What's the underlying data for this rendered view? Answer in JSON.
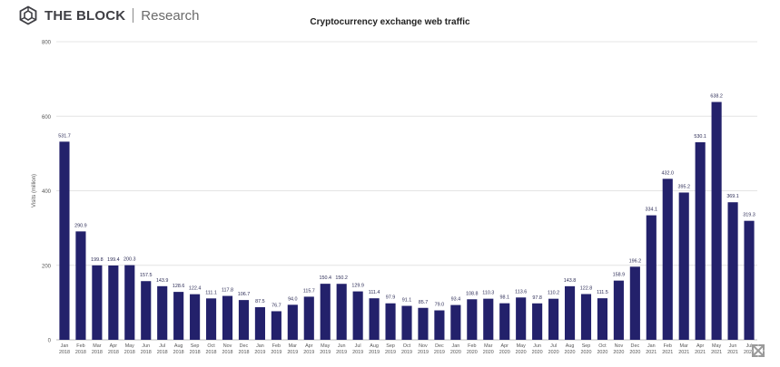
{
  "brand": {
    "name": "THE BLOCK",
    "sub": "Research",
    "icon": "cube-logo-icon"
  },
  "colors": {
    "bar": "#23216b",
    "grid": "#e4e4e4",
    "axis_text": "#555555",
    "label_text": "#2b2b55"
  },
  "chart_data": {
    "type": "bar",
    "title": "Cryptocurrency exchange web traffic",
    "xlabel": "",
    "ylabel": "Visits (million)",
    "ylim": [
      0,
      800
    ],
    "yticks": [
      0,
      200,
      400,
      600,
      800
    ],
    "grid": true,
    "categories": [
      [
        "Jan",
        "2018"
      ],
      [
        "Feb",
        "2018"
      ],
      [
        "Mar",
        "2018"
      ],
      [
        "Apr",
        "2018"
      ],
      [
        "May",
        "2018"
      ],
      [
        "Jun",
        "2018"
      ],
      [
        "Jul",
        "2018"
      ],
      [
        "Aug",
        "2018"
      ],
      [
        "Sep",
        "2018"
      ],
      [
        "Oct",
        "2018"
      ],
      [
        "Nov",
        "2018"
      ],
      [
        "Dec",
        "2018"
      ],
      [
        "Jan",
        "2019"
      ],
      [
        "Feb",
        "2019"
      ],
      [
        "Mar",
        "2019"
      ],
      [
        "Apr",
        "2019"
      ],
      [
        "May",
        "2019"
      ],
      [
        "Jun",
        "2019"
      ],
      [
        "Jul",
        "2019"
      ],
      [
        "Aug",
        "2019"
      ],
      [
        "Sep",
        "2019"
      ],
      [
        "Oct",
        "2019"
      ],
      [
        "Nov",
        "2019"
      ],
      [
        "Dec",
        "2019"
      ],
      [
        "Jan",
        "2020"
      ],
      [
        "Feb",
        "2020"
      ],
      [
        "Mar",
        "2020"
      ],
      [
        "Apr",
        "2020"
      ],
      [
        "May",
        "2020"
      ],
      [
        "Jun",
        "2020"
      ],
      [
        "Jul",
        "2020"
      ],
      [
        "Aug",
        "2020"
      ],
      [
        "Sep",
        "2020"
      ],
      [
        "Oct",
        "2020"
      ],
      [
        "Nov",
        "2020"
      ],
      [
        "Dec",
        "2020"
      ],
      [
        "Jan",
        "2021"
      ],
      [
        "Feb",
        "2021"
      ],
      [
        "Mar",
        "2021"
      ],
      [
        "Apr",
        "2021"
      ],
      [
        "May",
        "2021"
      ],
      [
        "Jun",
        "2021"
      ],
      [
        "Jul",
        "2021"
      ]
    ],
    "values": [
      531.7,
      290.9,
      199.8,
      199.4,
      200.3,
      157.5,
      143.9,
      128.6,
      122.4,
      111.1,
      117.8,
      106.7,
      87.5,
      76.7,
      94.0,
      115.7,
      150.4,
      150.2,
      129.9,
      111.4,
      97.9,
      91.1,
      85.7,
      79.0,
      93.4,
      108.8,
      110.3,
      98.1,
      113.6,
      97.8,
      110.2,
      143.8,
      122.8,
      111.5,
      158.9,
      196.2,
      334.1,
      432.0,
      395.2,
      530.1,
      638.2,
      369.1,
      319.3
    ],
    "value_labels": [
      "531.7",
      "290.9",
      "199.8",
      "199.4",
      "200.3",
      "157.5",
      "143.9",
      "128.6",
      "122.4",
      "111.1",
      "117.8",
      "106.7",
      "87.5",
      "76.7",
      "94.0",
      "115.7",
      "150.4",
      "150.2",
      "129.9",
      "111.4",
      "97.9",
      "91.1",
      "85.7",
      "79.0",
      "93.4",
      "108.8",
      "110.3",
      "98.1",
      "113.6",
      "97.8",
      "110.2",
      "143.8",
      "122.8",
      "111.5",
      "158.9",
      "196.2",
      "334.1",
      "432.0",
      "395.2",
      "530.1",
      "638.2",
      "369.1",
      "319.3"
    ]
  },
  "controls": {
    "expand_icon": "expand-arrows-icon"
  }
}
